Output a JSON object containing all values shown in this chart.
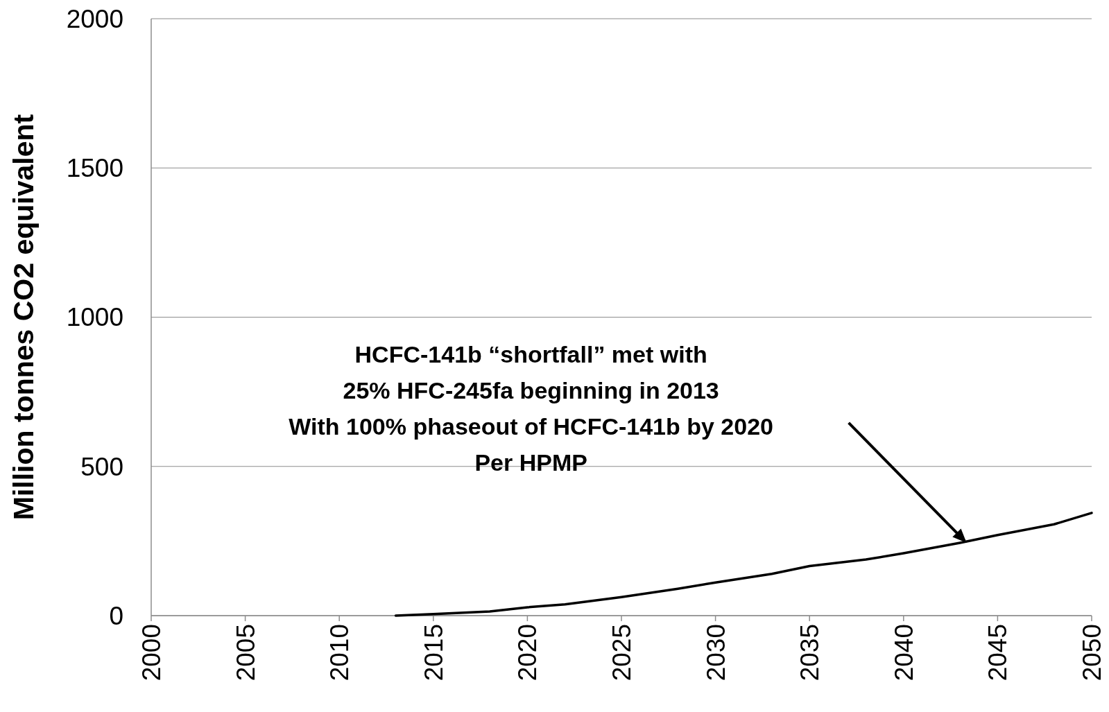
{
  "chart_data": {
    "type": "line",
    "ylabel": "Million tonnes CO2 equivalent",
    "x": [
      2013,
      2015,
      2018,
      2020,
      2022,
      2025,
      2028,
      2030,
      2033,
      2035,
      2038,
      2040,
      2043,
      2045,
      2048,
      2050
    ],
    "series": [
      {
        "color": "#000000",
        "values": [
          0,
          5,
          14,
          28,
          38,
          62,
          90,
          111,
          140,
          166,
          188,
          209,
          244,
          270,
          306,
          344
        ]
      }
    ],
    "xlim": [
      2000,
      2050
    ],
    "xticks": [
      2000,
      2005,
      2010,
      2015,
      2020,
      2025,
      2030,
      2035,
      2040,
      2045,
      2050
    ],
    "ylim": [
      0,
      2000
    ],
    "yticks": [
      0,
      500,
      1000,
      1500,
      2000
    ],
    "grid": "y",
    "marker": "none",
    "line_style": "solid",
    "annotations": [
      "HCFC-141b “shortfall” met with\n25% HFC-245fa  beginning in 2013\nWith 100% phaseout of HCFC-141b by 2020\nPer HPMP"
    ]
  }
}
